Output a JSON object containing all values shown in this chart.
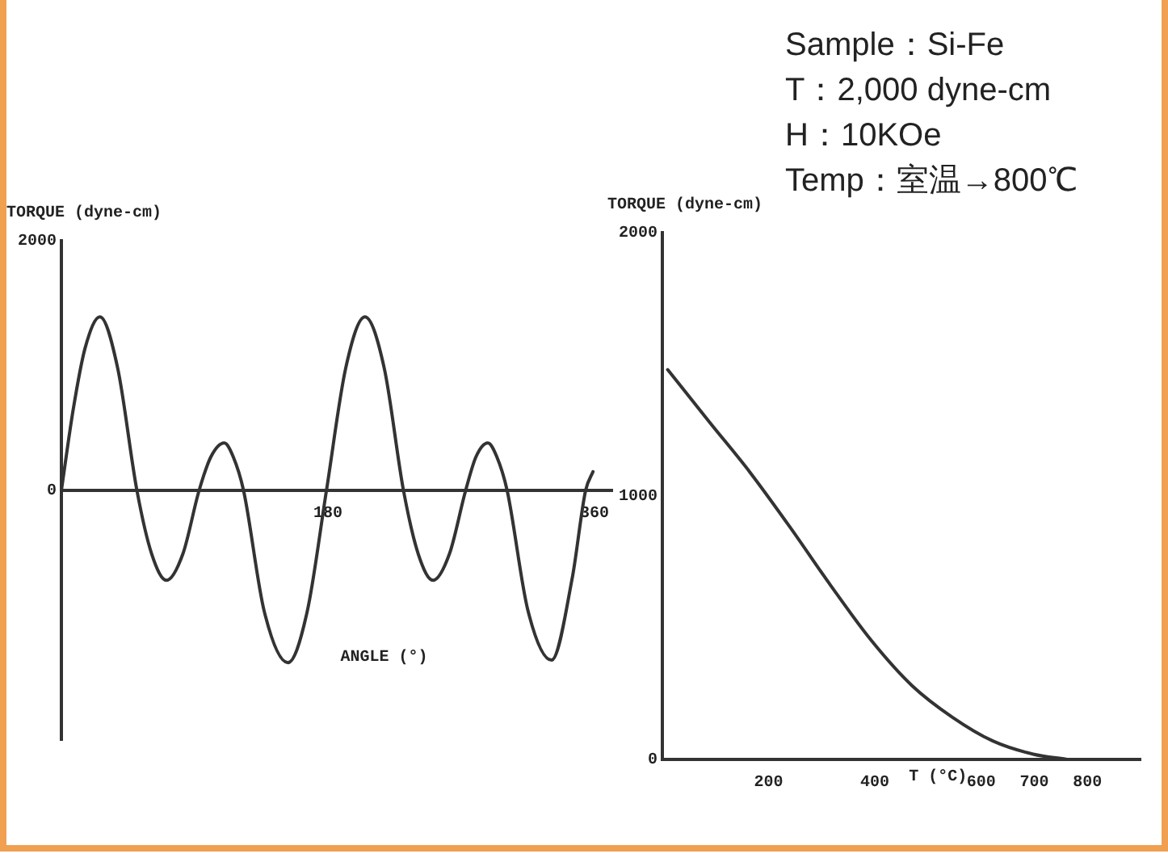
{
  "chart_data": [
    {
      "type": "line",
      "ylabel": "TORQUE (dyne-cm)",
      "xlabel": "ANGLE (°)",
      "marker": "none",
      "x": [
        0,
        8,
        16,
        26,
        38,
        51,
        61,
        71,
        82,
        93,
        101,
        110,
        116,
        123,
        137,
        153,
        166,
        179,
        192,
        205,
        218,
        231,
        241,
        251,
        262,
        273,
        280,
        288,
        294,
        301,
        315,
        331,
        345,
        354,
        359
      ],
      "series": [
        {
          "color": "#333333",
          "values": [
            0,
            650,
            1140,
            1390,
            980,
            0,
            -510,
            -720,
            -510,
            0,
            270,
            380,
            270,
            0,
            -970,
            -1380,
            -970,
            0,
            980,
            1390,
            980,
            0,
            -510,
            -720,
            -510,
            0,
            270,
            380,
            270,
            0,
            -960,
            -1360,
            -700,
            0,
            150
          ]
        }
      ],
      "xlim": [
        0,
        372
      ],
      "xticks": [
        180,
        360
      ],
      "ylim": [
        -2000,
        2000
      ],
      "yticks": [
        0,
        2000
      ]
    },
    {
      "type": "line",
      "ylabel": "TORQUE (dyne-cm)",
      "xlabel": "T (°C)",
      "marker": "none",
      "annotations": [
        "Sample：Si-Fe",
        "T：2,000 dyne-cm",
        "H：10KOe",
        "Temp：室温→800℃"
      ],
      "x": [
        10,
        89,
        165,
        241,
        317,
        394,
        470,
        546,
        622,
        698,
        762
      ],
      "series": [
        {
          "color": "#333333",
          "values": [
            1480,
            1280,
            1090,
            880,
            660,
            450,
            280,
            160,
            70,
            20,
            0
          ]
        }
      ],
      "xlim": [
        0,
        900
      ],
      "xticks": [
        200,
        400,
        600,
        700,
        800
      ],
      "ylim": [
        0,
        2000
      ],
      "yticks": [
        0,
        1000,
        2000
      ]
    }
  ]
}
